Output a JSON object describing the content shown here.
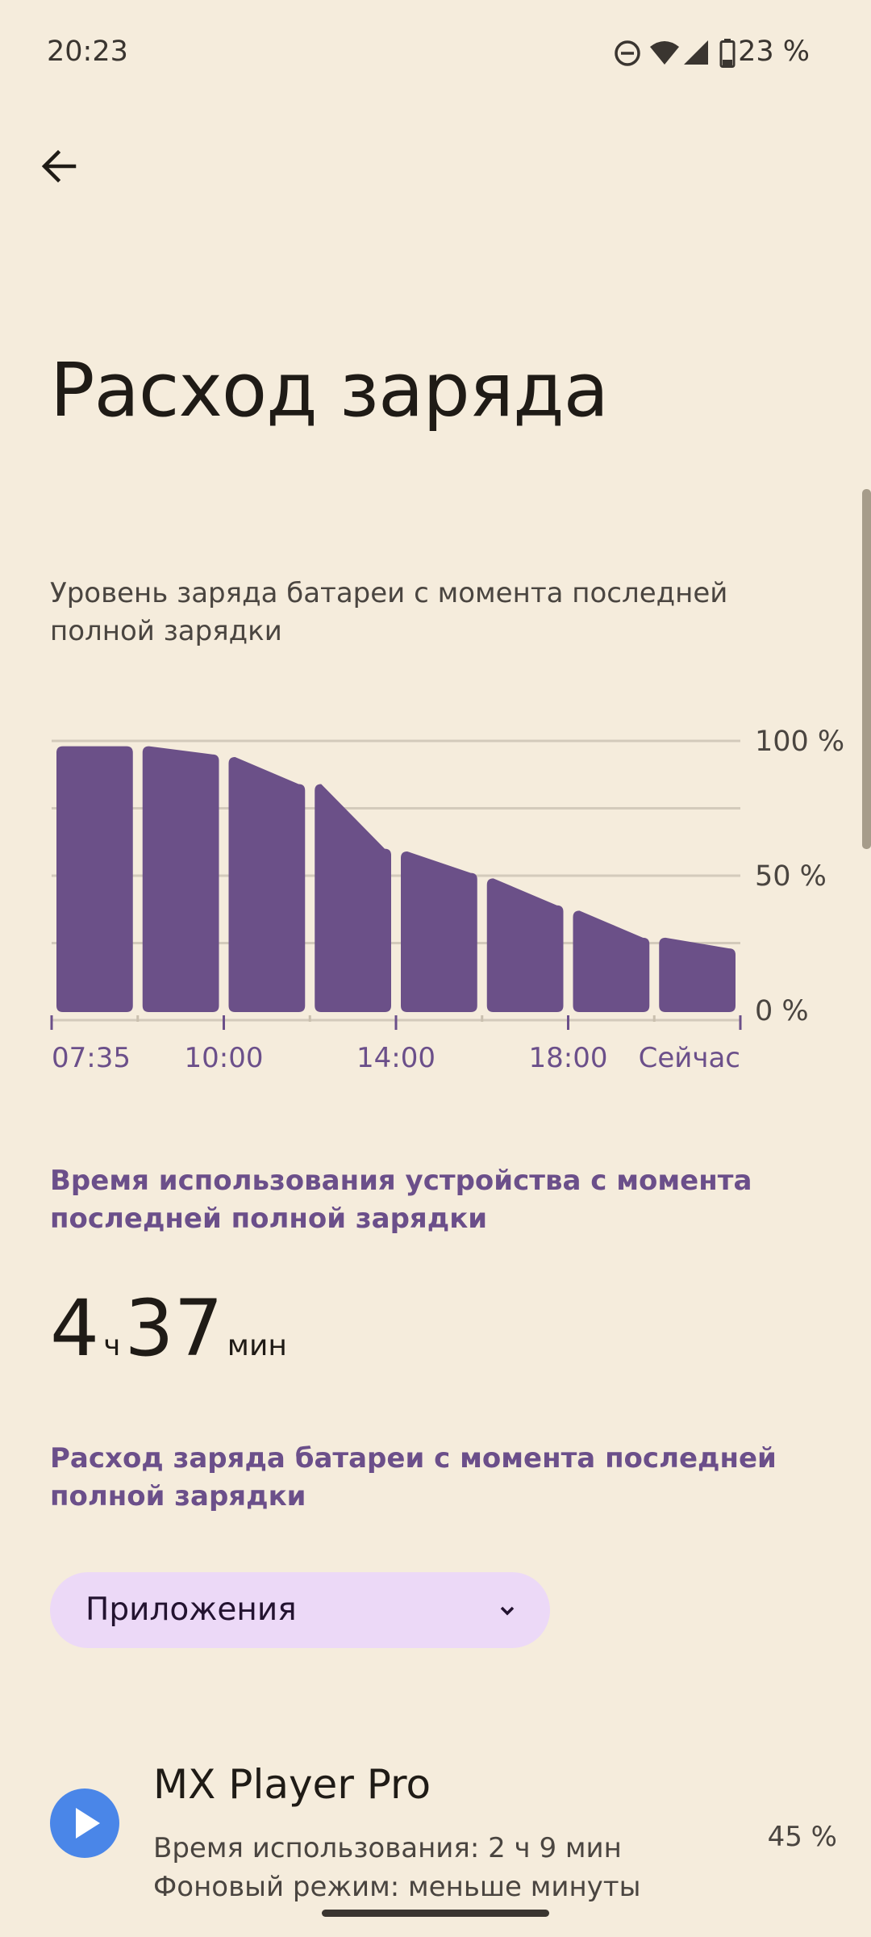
{
  "status_bar": {
    "time": "20:23",
    "battery": "23 %",
    "icons": [
      "do-not-disturb-icon",
      "wifi-icon",
      "signal-icon",
      "battery-icon"
    ]
  },
  "header": {
    "back_icon": "arrow-left-icon",
    "title": "Расход заряда"
  },
  "chart_caption": "Уровень заряда батареи с момента последней полной зарядки",
  "chart_data": {
    "type": "area",
    "title": "",
    "xlabel": "",
    "ylabel": "",
    "x_tick_labels": [
      "07:35",
      "10:00",
      "14:00",
      "18:00",
      "Сейчас"
    ],
    "y_tick_labels": [
      "100 %",
      "50 %",
      "0 %"
    ],
    "ylim": [
      0,
      100
    ],
    "grid": true,
    "color": "#6b5088",
    "series": [
      {
        "values": [
          [
            98,
            98
          ],
          [
            98,
            95
          ],
          [
            94,
            84
          ],
          [
            84,
            60
          ],
          [
            59,
            51
          ],
          [
            49,
            39
          ],
          [
            37,
            27
          ],
          [
            27,
            23
          ]
        ]
      }
    ]
  },
  "usage": {
    "title": "Время использования устройства с момента последней полной зарядки",
    "hours": "4",
    "hours_unit": "ч",
    "minutes": "37",
    "minutes_unit": "мин"
  },
  "consumption": {
    "title": "Расход заряда батареи с момента последней полной зарядки",
    "dropdown_label": "Приложения"
  },
  "apps": [
    {
      "name": "MX Player Pro",
      "icon": "play-icon",
      "usage": "Время использования: 2 ч 9 мин",
      "background": "Фоновый режим: меньше минуты",
      "percent": "45 %"
    }
  ],
  "colors": {
    "background": "#f5ecdc",
    "accent": "#6b4f8a",
    "chart_bar": "#6b5088",
    "dropdown": "#ecd9f7",
    "app_icon": "#4a86e8"
  }
}
